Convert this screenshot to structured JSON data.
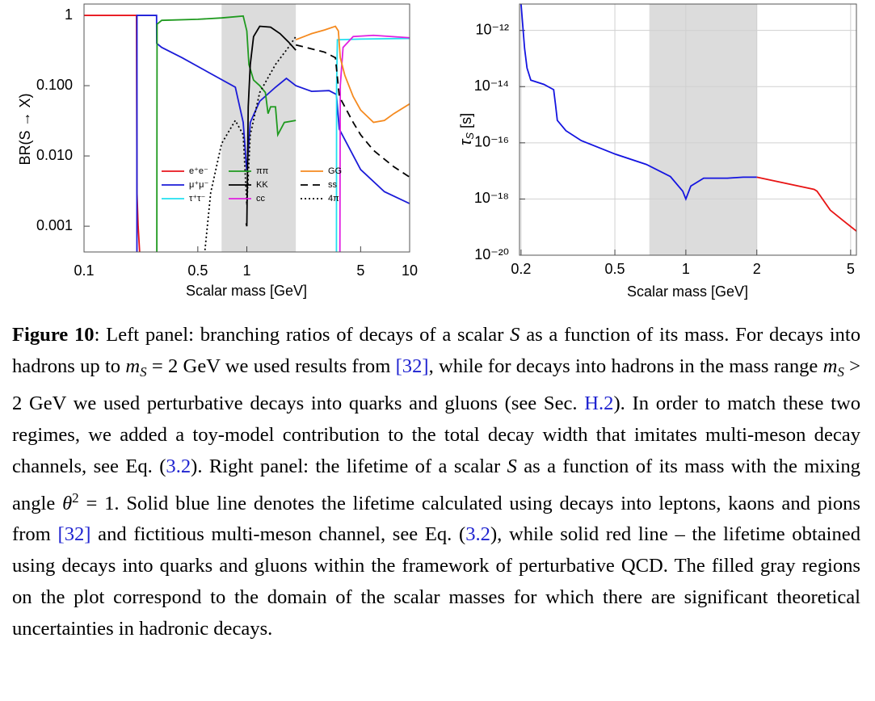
{
  "chart_data": [
    {
      "type": "line",
      "xlabel": "Scalar mass [GeV]",
      "ylabel": "BR(S → X)",
      "log_x": true,
      "log_y": true,
      "grid": false,
      "legend": "lower center",
      "xlim": [
        0.1,
        10
      ],
      "ylim": [
        0.00043,
        1.45
      ],
      "xticks": [
        0.1,
        0.5,
        1,
        5,
        10
      ],
      "yticks": [
        0.001,
        {
          "value": 0.01,
          "label": "0.010"
        },
        {
          "value": 0.1,
          "label": "0.100"
        },
        1
      ],
      "shaded_region": [
        0.7,
        2
      ],
      "series": [
        {
          "name": "e⁺e⁻",
          "color": "#e8141c",
          "dash": "solid",
          "x": [
            0.1,
            0.21,
            0.2115,
            0.215,
            0.22
          ],
          "values": [
            1,
            1,
            0.003,
            0.001,
            0.0004
          ]
        },
        {
          "name": "μ⁺μ⁻",
          "color": "#1b1bd8",
          "dash": "solid",
          "x": [
            0.2113,
            0.2114,
            0.279,
            0.2795,
            0.3,
            0.4,
            0.54,
            0.85,
            0.95,
            1.0,
            1.05,
            1.2,
            1.5,
            1.75,
            2.0,
            2.5,
            3.2,
            3.55,
            3.7,
            5,
            7,
            10
          ],
          "values": [
            0.0004,
            1,
            1,
            0.4,
            0.35,
            0.25,
            0.17,
            0.095,
            0.03,
            0.006,
            0.03,
            0.06,
            0.095,
            0.127,
            0.1,
            0.083,
            0.085,
            0.075,
            0.024,
            0.0064,
            0.0031,
            0.0021
          ]
        },
        {
          "name": "τ⁺τ⁻",
          "color": "#22e0f0",
          "dash": "solid",
          "x": [
            3.553,
            3.56,
            3.6,
            5,
            10
          ],
          "values": [
            0.0004,
            0.1,
            0.45,
            0.46,
            0.47
          ]
        },
        {
          "name": "ππ",
          "color": "#1f9a1f",
          "dash": "solid",
          "x": [
            0.28,
            0.281,
            0.3,
            0.5,
            0.7,
            0.95,
            1.0,
            1.03,
            1.1,
            1.2,
            1.3,
            1.35,
            1.4,
            1.5,
            1.55,
            1.7,
            2.0
          ],
          "values": [
            0.0004,
            0.75,
            0.85,
            0.88,
            0.92,
            0.98,
            0.6,
            0.2,
            0.12,
            0.1,
            0.08,
            0.04,
            0.05,
            0.05,
            0.02,
            0.03,
            0.032
          ]
        },
        {
          "name": "KK",
          "color": "#000000",
          "dash": "solid",
          "x": [
            0.99,
            1.0,
            1.02,
            1.05,
            1.1,
            1.2,
            1.4,
            1.6,
            1.8,
            2.0
          ],
          "values": [
            0.0011,
            0.001,
            0.05,
            0.2,
            0.5,
            0.7,
            0.68,
            0.55,
            0.42,
            0.32
          ]
        },
        {
          "name": "cc",
          "color": "#e020e0",
          "dash": "solid",
          "x": [
            3.73,
            3.75,
            3.9,
            4.5,
            6,
            10
          ],
          "values": [
            0.0004,
            0.1,
            0.35,
            0.5,
            0.52,
            0.48
          ]
        },
        {
          "name": "GG",
          "color": "#f58a1f",
          "dash": "solid",
          "x": [
            2,
            2.5,
            3,
            3.5,
            3.65,
            3.75,
            4,
            4.5,
            5,
            6,
            7,
            8,
            10
          ],
          "values": [
            0.45,
            0.55,
            0.62,
            0.7,
            0.6,
            0.25,
            0.14,
            0.07,
            0.045,
            0.03,
            0.032,
            0.04,
            0.055
          ]
        },
        {
          "name": "ss",
          "color": "#000000",
          "dash": "dashed",
          "x": [
            2,
            3,
            3.5,
            3.7,
            4.5,
            5,
            6,
            8,
            10
          ],
          "values": [
            0.38,
            0.3,
            0.25,
            0.07,
            0.03,
            0.02,
            0.012,
            0.007,
            0.005
          ]
        },
        {
          "name": "4π",
          "color": "#000000",
          "dash": "dotted",
          "x": [
            0.55,
            0.6,
            0.7,
            0.85,
            0.95,
            1.0,
            1.05,
            1.2,
            1.5,
            1.8,
            2.0
          ],
          "values": [
            0.0004,
            0.003,
            0.015,
            0.032,
            0.02,
            0.002,
            0.02,
            0.08,
            0.2,
            0.35,
            0.5
          ]
        }
      ]
    },
    {
      "type": "line",
      "xlabel": "Scalar mass [GeV]",
      "ylabel": [
        "τ",
        "S",
        " [s]"
      ],
      "log_x": true,
      "log_y": true,
      "grid": true,
      "xlim": [
        0.197,
        5.29
      ],
      "ylim": [
        1e-20,
        8.7e-12
      ],
      "xticks": [
        0.2,
        0.5,
        1,
        2,
        5
      ],
      "yticks": [
        {
          "value": 1e-20,
          "label": "10⁻²⁰"
        },
        {
          "value": 1e-18,
          "label": "10⁻¹⁸"
        },
        {
          "value": 1e-16,
          "label": "10⁻¹⁶"
        },
        {
          "value": 1e-14,
          "label": "10⁻¹⁴"
        },
        {
          "value": 1e-12,
          "label": "10⁻¹²"
        }
      ],
      "shaded_region": [
        0.7,
        2
      ],
      "series": [
        {
          "color": "#1414e0",
          "dash": "solid",
          "x": [
            0.2,
            0.207,
            0.212,
            0.22,
            0.25,
            0.275,
            0.28,
            0.285,
            0.31,
            0.36,
            0.5,
            0.68,
            0.86,
            0.97,
            1.0,
            1.05,
            1.19,
            1.5,
            1.75,
            2.0
          ],
          "values": [
            8.7e-12,
            2.3e-13,
            4.6e-14,
            1.7e-14,
            1.2e-14,
            7.8e-15,
            2.3e-15,
            6.3e-16,
            2.7e-16,
            1.2e-16,
            4e-17,
            1.7e-17,
            6.3e-18,
            1.9e-18,
            1e-18,
            2.9e-18,
            5.5e-18,
            5.5e-18,
            6e-18,
            6e-18
          ]
        },
        {
          "color": "#e81414",
          "dash": "solid",
          "x": [
            2.0,
            3.5,
            3.6,
            4.1,
            4.65,
            5.29
          ],
          "values": [
            6e-18,
            2.2e-18,
            1.9e-18,
            4e-19,
            1.7e-19,
            7.2e-20
          ]
        }
      ]
    }
  ],
  "caption": {
    "label": "Figure 10",
    "runs": [
      ": Left panel: branching ratios of decays of a scalar ",
      "S",
      " as a function of its mass. For decays into hadrons up to ",
      "m",
      "S",
      " = 2 GeV we used results from ",
      "[32]",
      ", while for decays into hadrons in the mass range ",
      "m",
      "S",
      " > 2 GeV we used perturbative decays into quarks and gluons (see Sec. ",
      "H.2",
      "). In order to match these two regimes, we added a toy-model contribution to the total decay width that imitates multi-meson decay channels, see Eq. (",
      "3.2",
      "). Right panel: the lifetime of a scalar ",
      "S",
      " as a function of its mass with the mixing angle ",
      "θ",
      "2",
      " = 1. Solid blue line denotes the lifetime calculated using decays into leptons, kaons and pions from ",
      "[32]",
      " and fictitious multi-meson channel, see Eq. (",
      "3.2",
      "), while solid red line – the lifetime obtained using decays into quarks and gluons within the framework of perturbative QCD. The filled gray regions on the plot correspond to the domain of the scalar masses for which there are significant theoretical uncertainties in hadronic decays."
    ]
  }
}
